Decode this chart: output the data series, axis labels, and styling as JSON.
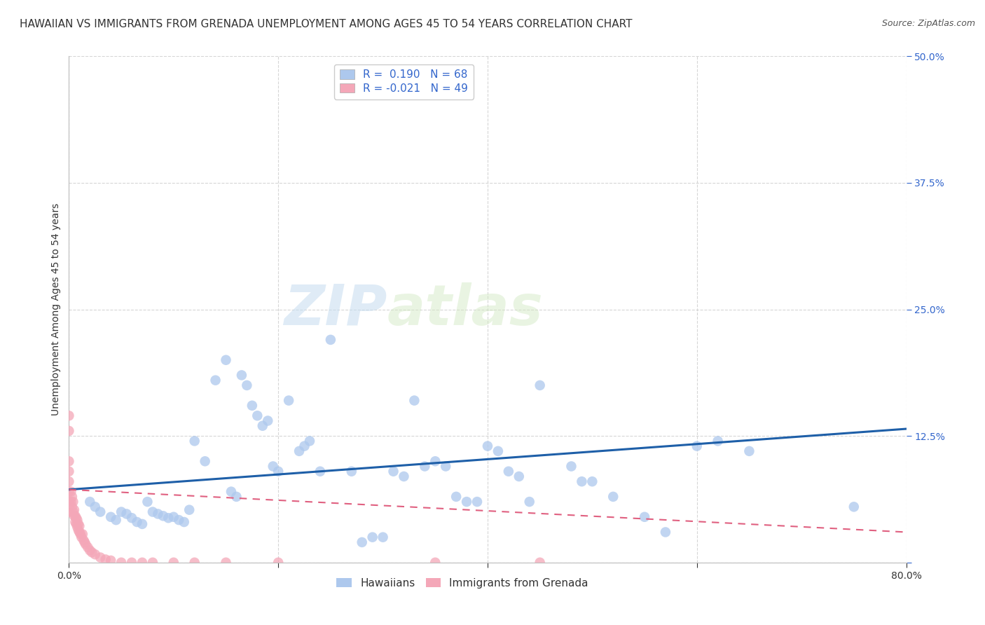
{
  "title": "HAWAIIAN VS IMMIGRANTS FROM GRENADA UNEMPLOYMENT AMONG AGES 45 TO 54 YEARS CORRELATION CHART",
  "source": "Source: ZipAtlas.com",
  "ylabel": "Unemployment Among Ages 45 to 54 years",
  "xlim": [
    0,
    0.8
  ],
  "ylim": [
    0,
    0.5
  ],
  "xticks": [
    0.0,
    0.2,
    0.4,
    0.6,
    0.8
  ],
  "xticklabels": [
    "0.0%",
    "",
    "",
    "",
    "80.0%"
  ],
  "yticks": [
    0.0,
    0.125,
    0.25,
    0.375,
    0.5
  ],
  "yticklabels": [
    "",
    "12.5%",
    "25.0%",
    "37.5%",
    "50.0%"
  ],
  "hawaiian_R": 0.19,
  "hawaiian_N": 68,
  "grenada_R": -0.021,
  "grenada_N": 49,
  "hawaiian_color": "#adc8ed",
  "grenada_color": "#f4a7b8",
  "trend_hawaiian_color": "#1e5fa8",
  "trend_grenada_color": "#e06080",
  "background_color": "#ffffff",
  "watermark_zip": "ZIP",
  "watermark_atlas": "atlas",
  "legend_hawaiians": "Hawaiians",
  "legend_grenada": "Immigrants from Grenada",
  "hawaiian_x": [
    0.02,
    0.025,
    0.03,
    0.04,
    0.045,
    0.05,
    0.055,
    0.06,
    0.065,
    0.07,
    0.075,
    0.08,
    0.085,
    0.09,
    0.095,
    0.1,
    0.105,
    0.11,
    0.115,
    0.12,
    0.13,
    0.14,
    0.15,
    0.155,
    0.16,
    0.165,
    0.17,
    0.175,
    0.18,
    0.185,
    0.19,
    0.195,
    0.2,
    0.21,
    0.22,
    0.225,
    0.23,
    0.24,
    0.25,
    0.27,
    0.28,
    0.29,
    0.3,
    0.31,
    0.32,
    0.33,
    0.34,
    0.35,
    0.36,
    0.37,
    0.38,
    0.39,
    0.4,
    0.41,
    0.42,
    0.43,
    0.44,
    0.45,
    0.48,
    0.49,
    0.5,
    0.52,
    0.55,
    0.57,
    0.6,
    0.62,
    0.65,
    0.75
  ],
  "hawaiian_y": [
    0.06,
    0.055,
    0.05,
    0.045,
    0.042,
    0.05,
    0.048,
    0.044,
    0.04,
    0.038,
    0.06,
    0.05,
    0.048,
    0.046,
    0.044,
    0.045,
    0.042,
    0.04,
    0.052,
    0.12,
    0.1,
    0.18,
    0.2,
    0.07,
    0.065,
    0.185,
    0.175,
    0.155,
    0.145,
    0.135,
    0.14,
    0.095,
    0.09,
    0.16,
    0.11,
    0.115,
    0.12,
    0.09,
    0.22,
    0.09,
    0.02,
    0.025,
    0.025,
    0.09,
    0.085,
    0.16,
    0.095,
    0.1,
    0.095,
    0.065,
    0.06,
    0.06,
    0.115,
    0.11,
    0.09,
    0.085,
    0.06,
    0.175,
    0.095,
    0.08,
    0.08,
    0.065,
    0.045,
    0.03,
    0.115,
    0.12,
    0.11,
    0.055
  ],
  "grenada_x": [
    0.0,
    0.0,
    0.0,
    0.0,
    0.0,
    0.0,
    0.0,
    0.0,
    0.002,
    0.002,
    0.003,
    0.003,
    0.004,
    0.004,
    0.005,
    0.005,
    0.006,
    0.006,
    0.007,
    0.007,
    0.008,
    0.008,
    0.009,
    0.009,
    0.01,
    0.01,
    0.011,
    0.012,
    0.013,
    0.014,
    0.015,
    0.016,
    0.018,
    0.02,
    0.022,
    0.025,
    0.03,
    0.035,
    0.04,
    0.05,
    0.06,
    0.07,
    0.08,
    0.1,
    0.12,
    0.15,
    0.2,
    0.35,
    0.45
  ],
  "grenada_y": [
    0.05,
    0.08,
    0.09,
    0.1,
    0.13,
    0.145,
    0.06,
    0.07,
    0.06,
    0.07,
    0.055,
    0.065,
    0.05,
    0.06,
    0.046,
    0.052,
    0.04,
    0.046,
    0.038,
    0.044,
    0.035,
    0.042,
    0.032,
    0.038,
    0.03,
    0.036,
    0.028,
    0.025,
    0.028,
    0.022,
    0.02,
    0.018,
    0.015,
    0.012,
    0.01,
    0.008,
    0.005,
    0.003,
    0.002,
    0.0,
    0.0,
    0.0,
    0.0,
    0.0,
    0.0,
    0.0,
    0.0,
    0.0,
    0.0
  ],
  "hawaiian_trend_x0": 0.0,
  "hawaiian_trend_y0": 0.072,
  "hawaiian_trend_x1": 0.8,
  "hawaiian_trend_y1": 0.132,
  "grenada_trend_x0": 0.0,
  "grenada_trend_y0": 0.072,
  "grenada_trend_x1": 0.8,
  "grenada_trend_y1": 0.03,
  "grid_color": "#cccccc",
  "title_fontsize": 11,
  "axis_fontsize": 10,
  "tick_fontsize": 10
}
